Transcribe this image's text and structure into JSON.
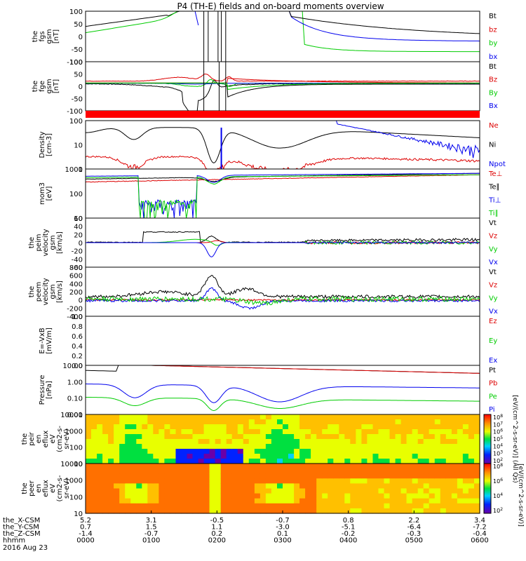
{
  "title": "P4 (TH-E) fields and on-board moments overview",
  "chart_data": {
    "type": "line",
    "time_ticks": [
      "0000",
      "0100",
      "0200",
      "0300",
      "0400",
      "0500",
      "0600"
    ],
    "date_label": "2016 Aug 23",
    "ephemeris": [
      {
        "label": "the_X-CSM",
        "values": [
          "5.2",
          "3.1",
          "-0.5",
          "-0.7",
          "0.8",
          "2.2",
          "3.4"
        ]
      },
      {
        "label": "the_Y-CSM",
        "values": [
          "0.7",
          "1.5",
          "1.1",
          "-3.0",
          "-5.1",
          "-6.4",
          "-7.2"
        ]
      },
      {
        "label": "the_Z-CSM",
        "values": [
          "-1.4",
          "-0.7",
          "0.2",
          "0.1",
          "-0.2",
          "-0.3",
          "-0.4"
        ]
      },
      {
        "label": "hhmm",
        "values": [
          "0000",
          "0100",
          "0200",
          "0300",
          "0400",
          "0500",
          "0600"
        ]
      }
    ],
    "panels": [
      {
        "ylabel": [
          "the",
          "fgs",
          "gsm",
          "[nT]"
        ],
        "scale": "linear",
        "ylim": [
          -100,
          100
        ],
        "ticks": [
          "100",
          "50",
          "0",
          "-50",
          "-100"
        ],
        "legend": [
          {
            "name": "Bt",
            "color": "#000000"
          },
          {
            "name": "bz",
            "color": "#dd0000"
          },
          {
            "name": "by",
            "color": "#00cc00"
          },
          {
            "name": "bx",
            "color": "#0000ee"
          }
        ]
      },
      {
        "ylabel": [
          "the",
          "fge",
          "gsm",
          "[nT]"
        ],
        "scale": "linear",
        "ylim": [
          -130,
          100
        ],
        "ticks": [
          "100",
          "50",
          "0",
          "-50",
          "-100"
        ],
        "legend": [
          {
            "name": "Bt",
            "color": "#000000"
          },
          {
            "name": "Bz",
            "color": "#dd0000"
          },
          {
            "name": "By",
            "color": "#00cc00"
          },
          {
            "name": "Bx",
            "color": "#0000ee"
          }
        ]
      },
      {
        "ylabel": [
          "Density",
          "[cm-3]"
        ],
        "scale": "log",
        "ylim": [
          0.3,
          200
        ],
        "ticks": [
          "100",
          "10",
          "1"
        ],
        "legend": [
          {
            "name": "Ne",
            "color": "#dd0000"
          },
          {
            "name": "Ni",
            "color": "#000000"
          },
          {
            "name": "Npot",
            "color": "#0000ee"
          }
        ]
      },
      {
        "ylabel": [
          "mom3",
          "[eV]"
        ],
        "scale": "log",
        "ylim": [
          2,
          5000
        ],
        "ticks": [
          "1000",
          "100",
          "10"
        ],
        "legend": [
          {
            "name": "Te⊥",
            "color": "#dd0000"
          },
          {
            "name": "Te∥",
            "color": "#000000"
          },
          {
            "name": "Ti⊥",
            "color": "#0000ee"
          },
          {
            "name": "Ti∥",
            "color": "#00cc00"
          }
        ]
      },
      {
        "ylabel": [
          "the",
          "peim",
          "velocity",
          "gsm",
          "[km/s]"
        ],
        "scale": "linear",
        "ylim": [
          -60,
          60
        ],
        "ticks": [
          "60",
          "40",
          "20",
          "0",
          "-20",
          "-40",
          "-60"
        ],
        "legend": [
          {
            "name": "Vt",
            "color": "#000000"
          },
          {
            "name": "Vz",
            "color": "#dd0000"
          },
          {
            "name": "Vy",
            "color": "#00cc00"
          },
          {
            "name": "Vx",
            "color": "#0000ee"
          }
        ]
      },
      {
        "ylabel": [
          "the",
          "peem",
          "velocity",
          "gsm",
          "[km/s]"
        ],
        "scale": "linear",
        "ylim": [
          -400,
          800
        ],
        "ticks": [
          "800",
          "600",
          "400",
          "200",
          "0",
          "-200",
          "-400"
        ],
        "legend": [
          {
            "name": "Vt",
            "color": "#000000"
          },
          {
            "name": "Vz",
            "color": "#dd0000"
          },
          {
            "name": "Vy",
            "color": "#00cc00"
          },
          {
            "name": "Vx",
            "color": "#0000ee"
          }
        ]
      },
      {
        "ylabel": [
          "E=-VxB",
          "[mV/m]"
        ],
        "scale": "linear",
        "ylim": [
          0,
          1
        ],
        "ticks": [
          "1.0",
          "0.8",
          "0.6",
          "0.4",
          "0.2",
          "0.0"
        ],
        "legend": [
          {
            "name": "Ez",
            "color": "#dd0000"
          },
          {
            "name": "Ey",
            "color": "#00cc00"
          },
          {
            "name": "Ex",
            "color": "#0000ee"
          }
        ]
      },
      {
        "ylabel": [
          "Pressure",
          "[nPa]"
        ],
        "scale": "log",
        "ylim": [
          0.008,
          40
        ],
        "ticks": [
          "10.00",
          "1.00",
          "0.10",
          "0.01"
        ],
        "legend": [
          {
            "name": "Pt",
            "color": "#000000"
          },
          {
            "name": "Pb",
            "color": "#dd0000"
          },
          {
            "name": "Pe",
            "color": "#00cc00"
          },
          {
            "name": "Pi",
            "color": "#0000ee"
          }
        ]
      },
      {
        "ylabel": [
          "the",
          "peir",
          "en",
          "eflux",
          "eV",
          "(cm2-s-",
          "sr-eV)"
        ],
        "type": "heatmap",
        "scale": "log",
        "ticks": [
          "10000",
          "1000",
          "100",
          "10"
        ]
      },
      {
        "ylabel": [
          "the",
          "peer",
          "en",
          "eflux",
          "eV",
          "(cm2-s-",
          "sr-eV)"
        ],
        "type": "heatmap",
        "scale": "log",
        "ticks": [
          "10000",
          "1000",
          "100",
          "10"
        ]
      }
    ],
    "colorbar": {
      "label": "[eV/(cm^2-s-sr-eV)] (All Qs)",
      "label2": "[eV/(cm^2-s-sr-eV)]",
      "ticks_top": [
        "10^8",
        "10^7",
        "10^6",
        "10^5",
        "10^4",
        "10^3",
        "10^2"
      ],
      "ticks_bottom": [
        "10^8",
        "10^6",
        "10^4",
        "10^2"
      ]
    }
  }
}
